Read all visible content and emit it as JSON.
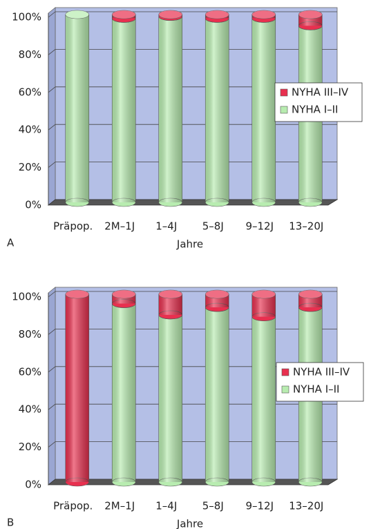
{
  "chart_data": [
    {
      "type": "bar",
      "stacked": true,
      "panel": "A",
      "x_label": "Jahre",
      "categories": [
        "Präpop.",
        "2M–1J",
        "1–4J",
        "5–8J",
        "9–12J",
        "13–20J"
      ],
      "series": [
        {
          "name": "NYHA I–II",
          "color": "#b8ecb0",
          "values": [
            100,
            98,
            99,
            98,
            98,
            94
          ]
        },
        {
          "name": "NYHA III–IV",
          "color": "#e8304f",
          "values": [
            0,
            2,
            1,
            2,
            2,
            6
          ]
        }
      ],
      "ylim": [
        0,
        100
      ],
      "yticks": [
        {
          "value": 0,
          "label": "0%"
        },
        {
          "value": 20,
          "label": "20%"
        },
        {
          "value": 40,
          "label": "40%"
        },
        {
          "value": 60,
          "label": "60%"
        },
        {
          "value": 80,
          "label": "80%"
        },
        {
          "value": 100,
          "label": "100%"
        }
      ],
      "grid": true,
      "legend": "right"
    },
    {
      "type": "bar",
      "stacked": true,
      "panel": "B",
      "x_label": "Jahre",
      "categories": [
        "Präpop.",
        "2M–1J",
        "1–4J",
        "5–8J",
        "9–12J",
        "13–20J"
      ],
      "series": [
        {
          "name": "NYHA I–II",
          "color": "#b8ecb0",
          "values": [
            0,
            95,
            89,
            93,
            88,
            93
          ]
        },
        {
          "name": "NYHA III–IV",
          "color": "#e8304f",
          "values": [
            100,
            5,
            11,
            7,
            12,
            7
          ]
        }
      ],
      "ylim": [
        0,
        100
      ],
      "yticks": [
        {
          "value": 0,
          "label": "0%"
        },
        {
          "value": 20,
          "label": "20%"
        },
        {
          "value": 40,
          "label": "40%"
        },
        {
          "value": 60,
          "label": "60%"
        },
        {
          "value": 80,
          "label": "80%"
        },
        {
          "value": 100,
          "label": "100%"
        }
      ],
      "grid": true,
      "legend": "right"
    }
  ]
}
